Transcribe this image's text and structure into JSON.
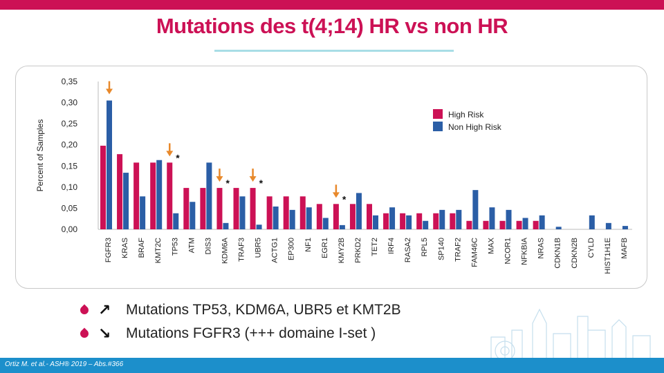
{
  "header": {
    "title": "Mutations des t(4;14) HR vs non HR"
  },
  "colors": {
    "brand": "#cc1155",
    "high_risk": "#cc1155",
    "non_high_risk": "#2b5ea6",
    "arrow": "#e8892b",
    "footer": "#1c8fcb"
  },
  "chart_data": {
    "type": "bar",
    "ylabel": "Percent of Samples",
    "ylim": [
      0,
      0.35
    ],
    "yticks": [
      "0,00",
      "0,05",
      "0,10",
      "0,15",
      "0,20",
      "0,25",
      "0,30",
      "0,35"
    ],
    "legend_position": "top-right",
    "categories": [
      "FGFR3",
      "KRAS",
      "BRAF",
      "KMT2C",
      "TP53",
      "ATM",
      "DIS3",
      "KDM6A",
      "TRAF3",
      "UBR5",
      "ACTG1",
      "EP300",
      "NF1",
      "EGR1",
      "KMY2B",
      "PRKD2",
      "TET2",
      "IRF4",
      "RASA2",
      "RPL5",
      "SP140",
      "TRAF2",
      "FAM46C",
      "MAX",
      "NCOR1",
      "NFKBIA",
      "NRAS",
      "CDKN1B",
      "CDKN2B",
      "CYLD",
      "HIST1H1E",
      "MAFB"
    ],
    "series": [
      {
        "name": "High Risk",
        "values": [
          0.198,
          0.178,
          0.158,
          0.158,
          0.158,
          0.098,
          0.098,
          0.098,
          0.098,
          0.098,
          0.078,
          0.078,
          0.078,
          0.06,
          0.06,
          0.06,
          0.06,
          0.038,
          0.038,
          0.038,
          0.038,
          0.038,
          0.02,
          0.02,
          0.02,
          0.02,
          0.02,
          0,
          0,
          0,
          0,
          0
        ]
      },
      {
        "name": "Non High Risk",
        "values": [
          0.305,
          0.134,
          0.078,
          0.164,
          0.038,
          0.065,
          0.158,
          0.015,
          0.078,
          0.011,
          0.054,
          0.046,
          0.052,
          0.027,
          0.01,
          0.086,
          0.033,
          0.052,
          0.033,
          0.02,
          0.046,
          0.046,
          0.093,
          0.052,
          0.046,
          0.027,
          0.033,
          0.006,
          0,
          0.033,
          0.015,
          0.008
        ]
      }
    ],
    "annotations": {
      "arrow_categories": [
        "FGFR3",
        "TP53",
        "KDM6A",
        "UBR5",
        "KMY2B"
      ],
      "star_categories": [
        "TP53",
        "KDM6A",
        "UBR5",
        "KMY2B"
      ],
      "star_label": "*"
    }
  },
  "bullets": [
    {
      "arrow_icon": "↗",
      "text": "Mutations TP53, KDM6A, UBR5 et KMT2B"
    },
    {
      "arrow_icon": "↘",
      "text": "Mutations FGFR3 (+++ domaine I-set )"
    }
  ],
  "footer": {
    "citation": "Ortiz M. et al.- ASH® 2019 – Abs.#366"
  }
}
